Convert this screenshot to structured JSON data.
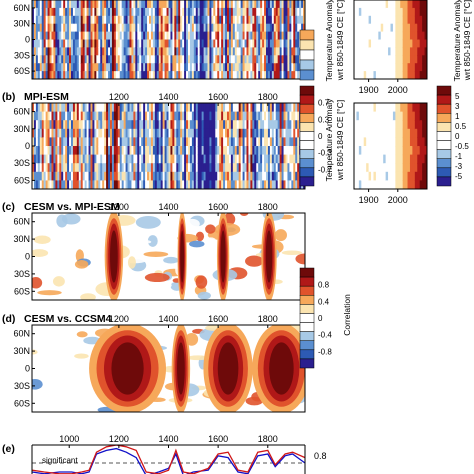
{
  "panels": {
    "b": {
      "label": "(b)",
      "title": "MPI-ESM"
    },
    "c": {
      "label": "(c)",
      "title": "CESM vs. MPI-ESM"
    },
    "d": {
      "label": "(d)",
      "title": "CESM vs. CCSM4"
    },
    "e": {
      "label": "(e)",
      "significant_label": "significant",
      "right_tick": "0.8"
    }
  },
  "colorbars": {
    "temp_a": {
      "title_line1": "Temperature Anomaly",
      "title_line2": "wrt 850-1849 CE [°C]"
    },
    "temp_b": {
      "title_line1": "Temperature Anomaly",
      "title_line2": "wrt 850-1849 CE [°C]",
      "ticks": [
        "0.7",
        "0.3",
        "0",
        "-0.3",
        "-0.7"
      ]
    },
    "temp_c": {
      "title_line1": "Temperature Anomaly",
      "title_line2": "wrt 850-1849 CE [°C]",
      "ticks": [
        "5",
        "3",
        "1",
        "0.5",
        "0",
        "-0.5",
        "-1",
        "-3",
        "-5"
      ]
    },
    "corr": {
      "title": "Correlation",
      "ticks": [
        "0.8",
        "0.4",
        "0",
        "-0.4",
        "-0.8"
      ]
    }
  },
  "chart_data": [
    {
      "type": "heatmap",
      "panel": "a (partial)",
      "xlim": [
        850,
        1950
      ],
      "yticklabels": [
        "60N",
        "30N",
        "0",
        "30S",
        "60S"
      ],
      "xticklabels": []
    },
    {
      "type": "heatmap",
      "panel": "b",
      "title": "MPI-ESM",
      "xlim": [
        850,
        1950
      ],
      "xticklabels": [
        "1200",
        "1400",
        "1600",
        "1800"
      ],
      "yticklabels": [
        "60N",
        "30N",
        "0",
        "30S",
        "60S"
      ],
      "zrange": [
        -0.7,
        0.7
      ]
    },
    {
      "type": "heatmap",
      "panel": "b inset",
      "xlim": [
        1850,
        2100
      ],
      "xticklabels": [
        "1900",
        "2000"
      ],
      "zrange": [
        -5,
        5
      ]
    },
    {
      "type": "heatmap",
      "panel": "c",
      "title": "CESM vs. MPI-ESM",
      "xlim": [
        850,
        1950
      ],
      "xticklabels": [
        "1200",
        "1400",
        "1600",
        "1800"
      ],
      "yticklabels": [
        "60N",
        "30N",
        "0",
        "30S",
        "60S"
      ],
      "zrange": [
        -0.8,
        0.8
      ],
      "high_correlation_periods": [
        [
          1150,
          1210
        ],
        [
          1440,
          1470
        ],
        [
          1600,
          1640
        ],
        [
          1780,
          1830
        ]
      ]
    },
    {
      "type": "heatmap",
      "panel": "d",
      "title": "CESM vs. CCSM4",
      "xlim": [
        850,
        1950
      ],
      "xticklabels": [
        "1200",
        "1400",
        "1600",
        "1800"
      ],
      "yticklabels": [
        "60N",
        "30N",
        "0",
        "30S",
        "60S"
      ],
      "zrange": [
        -0.8,
        0.8
      ],
      "high_correlation_periods": [
        [
          1110,
          1360
        ],
        [
          1420,
          1480
        ],
        [
          1560,
          1720
        ],
        [
          1760,
          1950
        ]
      ]
    },
    {
      "type": "line",
      "panel": "e",
      "xlim": [
        850,
        1950
      ],
      "xticklabels": [
        "1000",
        "1200",
        "1400",
        "1600",
        "1800"
      ],
      "ylim": [
        0.6,
        0.85
      ],
      "significance_level": 0.75,
      "series": [
        {
          "color": "#1010c8",
          "x": [
            850,
            900,
            960,
            1010,
            1050,
            1080,
            1110,
            1150,
            1190,
            1230,
            1270,
            1310,
            1360,
            1400,
            1430,
            1460,
            1500,
            1560,
            1600,
            1640,
            1680,
            1720,
            1760,
            1800,
            1830,
            1870,
            1900,
            1950
          ],
          "values": [
            0.7,
            0.69,
            0.7,
            0.7,
            0.69,
            0.7,
            0.8,
            0.82,
            0.83,
            0.81,
            0.78,
            0.68,
            0.7,
            0.72,
            0.8,
            0.68,
            0.7,
            0.71,
            0.79,
            0.78,
            0.7,
            0.69,
            0.79,
            0.8,
            0.73,
            0.79,
            0.8,
            0.75
          ]
        },
        {
          "color": "#d01818",
          "x": [
            850,
            900,
            960,
            1010,
            1050,
            1080,
            1110,
            1150,
            1190,
            1230,
            1270,
            1310,
            1360,
            1400,
            1430,
            1460,
            1500,
            1560,
            1600,
            1640,
            1680,
            1720,
            1760,
            1800,
            1830,
            1870,
            1900,
            1950
          ],
          "values": [
            0.71,
            0.7,
            0.69,
            0.69,
            0.7,
            0.71,
            0.81,
            0.84,
            0.85,
            0.84,
            0.82,
            0.7,
            0.69,
            0.71,
            0.82,
            0.7,
            0.69,
            0.72,
            0.8,
            0.81,
            0.71,
            0.7,
            0.81,
            0.82,
            0.74,
            0.8,
            0.81,
            0.78
          ]
        }
      ]
    }
  ]
}
